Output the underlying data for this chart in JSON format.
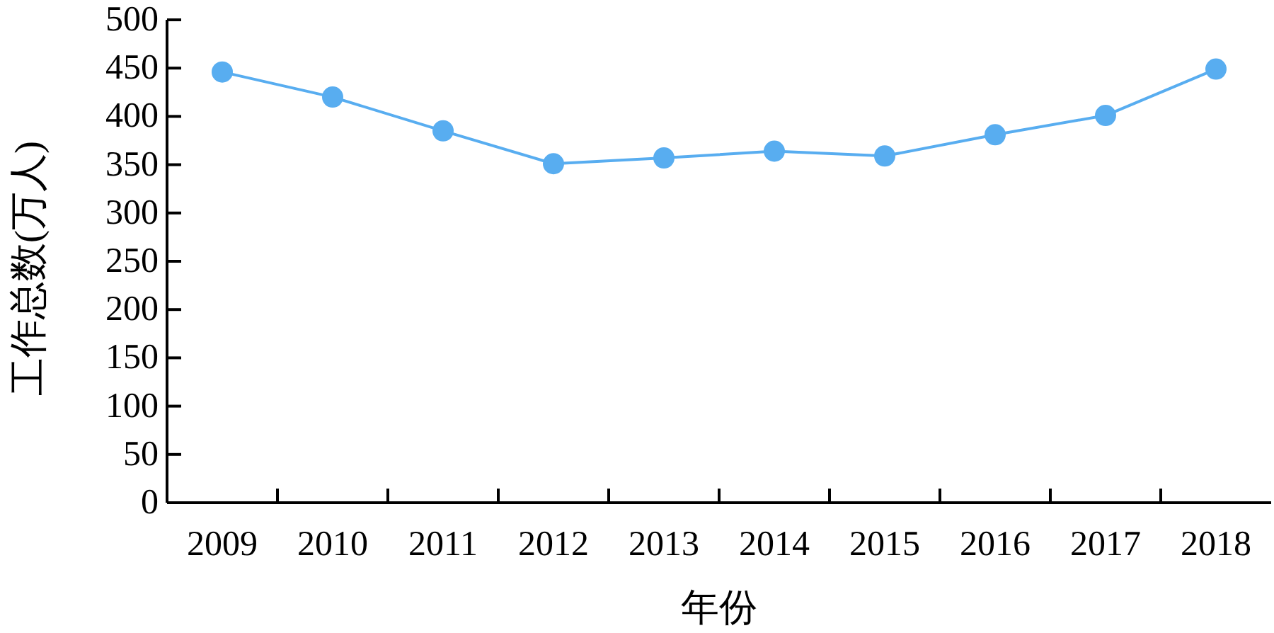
{
  "chart_data": {
    "type": "line",
    "xlabel": "年份",
    "ylabel": "工作总数(万人)",
    "categories": [
      "2009",
      "2010",
      "2011",
      "2012",
      "2013",
      "2014",
      "2015",
      "2016",
      "2017",
      "2018"
    ],
    "series": [
      {
        "color": "#58adf0",
        "values": [
          446,
          420,
          385,
          351,
          357,
          364,
          359,
          381,
          401,
          449
        ]
      }
    ],
    "ylim": [
      0,
      500
    ],
    "yticks": [
      0,
      50,
      100,
      150,
      200,
      250,
      300,
      350,
      400,
      450,
      500
    ],
    "marker": "circle",
    "line_style": "solid"
  }
}
